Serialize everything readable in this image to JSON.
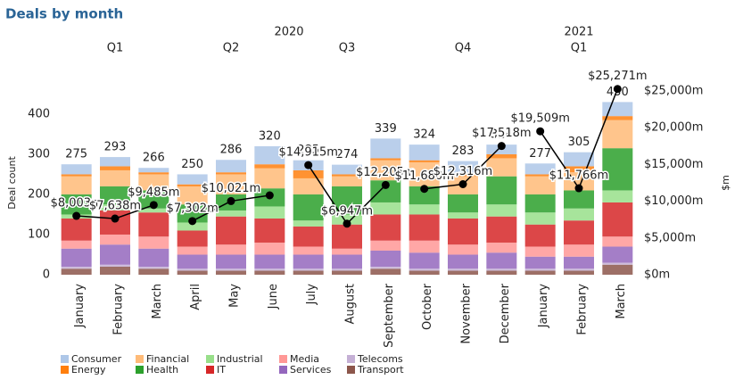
{
  "chart_data": {
    "type": "bar",
    "title": "Deals by month",
    "years": [
      {
        "label": "2020",
        "quarters": 4
      },
      {
        "label": "2021",
        "quarters": 1
      }
    ],
    "quarters": [
      {
        "label": "Q1",
        "months": 3
      },
      {
        "label": "Q2",
        "months": 3
      },
      {
        "label": "Q3",
        "months": 3
      },
      {
        "label": "Q4",
        "months": 3
      },
      {
        "label": "Q1",
        "months": 3
      }
    ],
    "categories": [
      "January",
      "February",
      "March",
      "April",
      "May",
      "June",
      "July",
      "August",
      "September",
      "October",
      "November",
      "December",
      "January",
      "February",
      "March"
    ],
    "y_label": "Deal count",
    "y2_label": "$m",
    "ylim": [
      0,
      462
    ],
    "yticks": [
      0,
      100,
      200,
      300,
      400
    ],
    "y2lim": [
      0,
      25240
    ],
    "y2ticks": [
      {
        "value": 0,
        "label": "$0m"
      },
      {
        "value": 5000,
        "label": "$5,000m"
      },
      {
        "value": 10000,
        "label": "$10,000m"
      },
      {
        "value": 15000,
        "label": "$15,000m"
      },
      {
        "value": 20000,
        "label": "$20,000m"
      },
      {
        "value": 25000,
        "label": "$25,000m"
      }
    ],
    "series": [
      {
        "name": "Consumer",
        "color": "#aec7e8",
        "values": [
          25,
          23,
          11,
          25,
          31,
          45,
          25,
          24,
          49,
          39,
          33,
          24,
          27,
          35,
          35
        ]
      },
      {
        "name": "Energy",
        "color": "#ff7f0e",
        "values": [
          5,
          10,
          5,
          5,
          5,
          10,
          20,
          5,
          5,
          5,
          5,
          10,
          5,
          15,
          10
        ]
      },
      {
        "name": "Financial",
        "color": "#ffbb78",
        "values": [
          45,
          40,
          40,
          45,
          50,
          50,
          40,
          25,
          50,
          60,
          45,
          45,
          45,
          45,
          70
        ]
      },
      {
        "name": "Health",
        "color": "#2ca02c",
        "values": [
          50,
          45,
          45,
          45,
          40,
          45,
          65,
          70,
          55,
          45,
          45,
          70,
          45,
          45,
          105
        ]
      },
      {
        "name": "Industrial",
        "color": "#98df8a",
        "values": [
          10,
          15,
          10,
          20,
          15,
          30,
          15,
          25,
          30,
          25,
          15,
          30,
          30,
          30,
          30
        ]
      },
      {
        "name": "IT",
        "color": "#d62728",
        "values": [
          55,
          60,
          60,
          40,
          70,
          60,
          50,
          60,
          65,
          65,
          65,
          65,
          55,
          60,
          85
        ]
      },
      {
        "name": "Media",
        "color": "#ff9896",
        "values": [
          20,
          25,
          30,
          20,
          25,
          30,
          20,
          15,
          25,
          30,
          25,
          25,
          25,
          30,
          25
        ]
      },
      {
        "name": "Services",
        "color": "#9467bd",
        "values": [
          45,
          50,
          45,
          35,
          35,
          35,
          35,
          35,
          40,
          40,
          35,
          40,
          30,
          30,
          40
        ]
      },
      {
        "name": "Telecoms",
        "color": "#c5b0d5",
        "values": [
          5,
          5,
          5,
          5,
          5,
          5,
          5,
          5,
          5,
          5,
          5,
          5,
          5,
          5,
          5
        ]
      },
      {
        "name": "Transport",
        "color": "#8c564b",
        "values": [
          15,
          20,
          15,
          10,
          10,
          10,
          10,
          10,
          15,
          10,
          10,
          10,
          10,
          10,
          25
        ]
      }
    ],
    "totals": [
      275,
      293,
      266,
      250,
      286,
      320,
      285,
      274,
      339,
      324,
      283,
      324,
      277,
      305,
      430
    ],
    "line": {
      "type": "line",
      "axis": "y2",
      "color": "#000000",
      "values": [
        8003,
        7638,
        9485,
        7302,
        10021,
        10800,
        14915,
        6947,
        12205,
        11680,
        12316,
        17518,
        19509,
        11766,
        25271
      ],
      "value_labels": [
        "$8,003m",
        "$7,638m",
        "$9,485m",
        "$7,302m",
        "$10,021m",
        null,
        "$14,915m",
        "$6,947m",
        "$12,205m",
        "$11,680m",
        "$12,316m",
        "$17,518m",
        "$19,509m",
        "$11,766m",
        "$25,271m"
      ]
    }
  }
}
